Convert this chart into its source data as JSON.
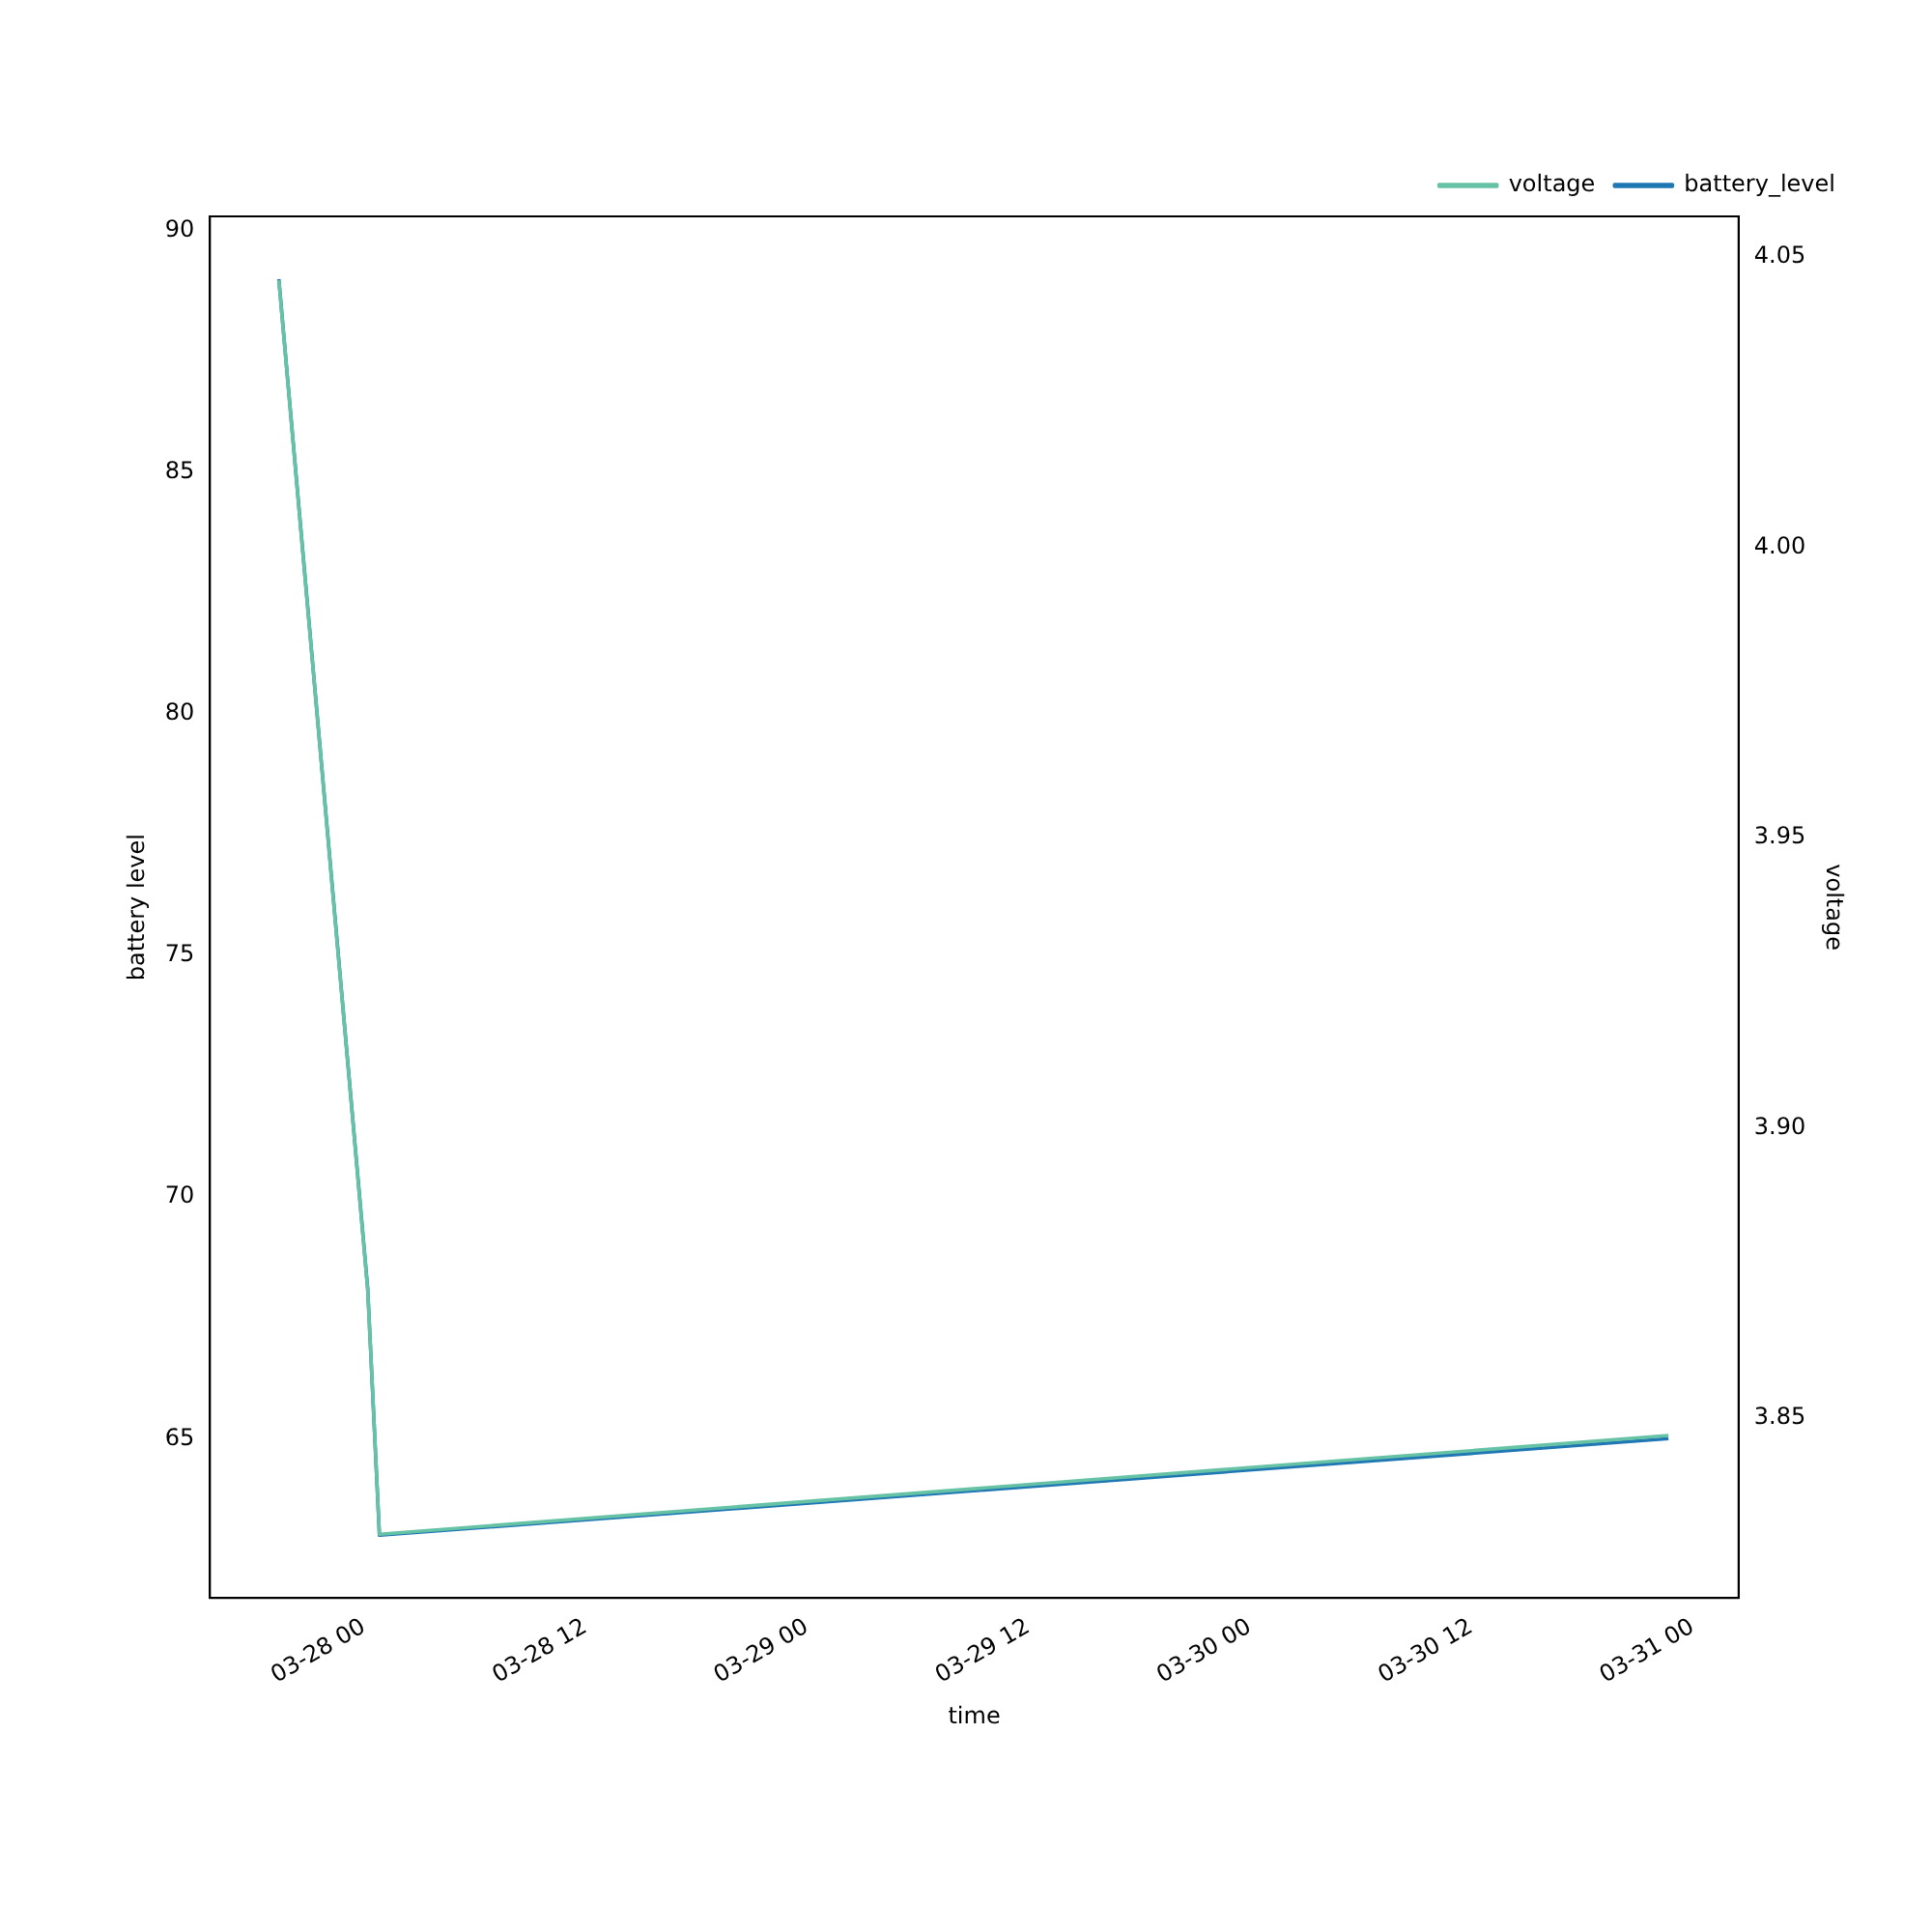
{
  "chart_data": {
    "type": "line",
    "xlabel": "time",
    "ylabel": "battery level",
    "y2label": "voltage",
    "x": [
      "--03-27T19:24",
      "--03-28T00:13",
      "--03-28T00:51",
      "--03-30T22:42"
    ],
    "xlim": [
      "--03-27T15:40",
      "--03-31T02:30"
    ],
    "xticks": [
      {
        "value": "--03-28T00:00",
        "label": "03-28 00"
      },
      {
        "value": "--03-28T12:00",
        "label": "03-28 12"
      },
      {
        "value": "--03-29T00:00",
        "label": "03-29 00"
      },
      {
        "value": "--03-29T12:00",
        "label": "03-29 12"
      },
      {
        "value": "--03-30T00:00",
        "label": "03-30 00"
      },
      {
        "value": "--03-30T12:00",
        "label": "03-30 12"
      },
      {
        "value": "--03-31T00:00",
        "label": "03-31 00"
      }
    ],
    "ylim": [
      61.7,
      90.3
    ],
    "yticks": [
      65,
      70,
      75,
      80,
      85,
      90
    ],
    "y2lim": [
      3.819,
      4.057
    ],
    "y2ticks": [
      {
        "value": 3.85,
        "label": "3.85"
      },
      {
        "value": 3.9,
        "label": "3.90"
      },
      {
        "value": 3.95,
        "label": "3.95"
      },
      {
        "value": 4.0,
        "label": "4.00"
      },
      {
        "value": 4.05,
        "label": "4.05"
      }
    ],
    "series": [
      {
        "name": "battery_level",
        "color": "#1f77b4",
        "values": [
          89,
          68.1,
          63,
          65
        ]
      },
      {
        "name": "voltage",
        "color": "#66c2a5",
        "values": [
          4.046,
          3.872,
          3.83,
          3.847
        ],
        "axis": "y2"
      }
    ],
    "legend": "top right",
    "grid": false,
    "line_style": "solid",
    "marker": "none"
  }
}
